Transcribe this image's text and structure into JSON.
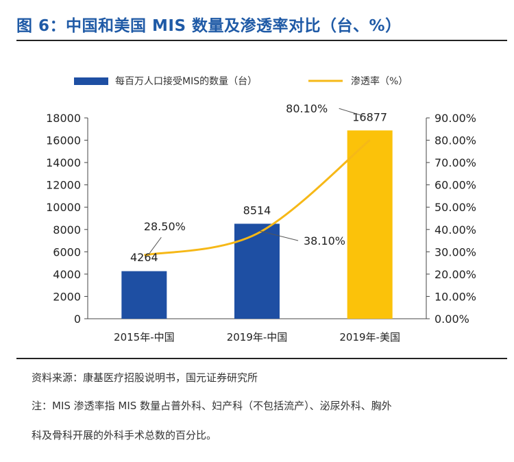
{
  "title": "图 6：中国和美国 MIS 数量及渗透率对比（台、%）",
  "colors": {
    "bar_cn": "#1e4fa3",
    "bar_us": "#fbc20a",
    "line": "#f6b817",
    "title": "#1f5aa6"
  },
  "chart_data": {
    "type": "bar",
    "categories": [
      "2015年-中国",
      "2019年-中国",
      "2019年-美国"
    ],
    "series": [
      {
        "name": "每百万人口接受MIS的数量（台）",
        "type": "bar",
        "axis": "left",
        "values": [
          4264,
          8514,
          16877
        ],
        "labels": [
          "4264",
          "8514",
          "16877"
        ]
      },
      {
        "name": "渗透率（%）",
        "type": "line",
        "axis": "right",
        "values": [
          28.5,
          38.1,
          80.1
        ],
        "labels": [
          "28.50%",
          "38.10%",
          "80.10%"
        ]
      }
    ],
    "y_left": {
      "min": 0,
      "max": 18000,
      "ticks": [
        "0",
        "2000",
        "4000",
        "6000",
        "8000",
        "10000",
        "12000",
        "14000",
        "16000",
        "18000"
      ]
    },
    "y_right": {
      "min": 0,
      "max": 90,
      "ticks": [
        "0.00%",
        "10.00%",
        "20.00%",
        "30.00%",
        "40.00%",
        "50.00%",
        "60.00%",
        "70.00%",
        "80.00%",
        "90.00%"
      ]
    },
    "legend_position": "top",
    "grid": false
  },
  "notes": {
    "source": "资料来源：康基医疗招股说明书，国元证券研究所",
    "note_line1": "注：MIS 渗透率指 MIS 数量占普外科、妇产科（不包括流产）、泌尿外科、胸外",
    "note_line2": "科及骨科开展的外科手术总数的百分比。"
  }
}
